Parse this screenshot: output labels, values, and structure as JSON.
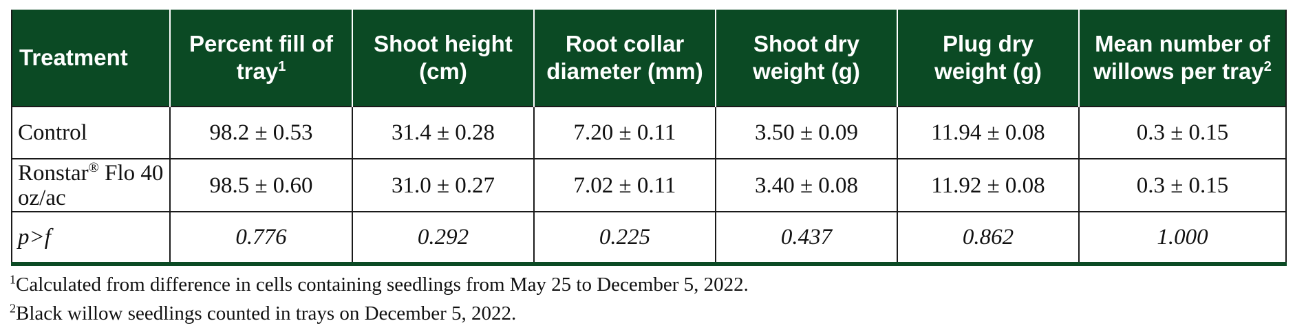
{
  "table": {
    "header": [
      {
        "text": "Treatment"
      },
      {
        "text": "Percent fill of tray",
        "sup": "1"
      },
      {
        "text": "Shoot height (cm)"
      },
      {
        "text": "Root collar diameter (mm)"
      },
      {
        "text": "Shoot dry weight (g)"
      },
      {
        "text": "Plug dry weight (g)"
      },
      {
        "text": "Mean number of willows per tray",
        "sup": "2"
      }
    ],
    "rows": [
      {
        "label": "Control",
        "cells": [
          "98.2 ± 0.53",
          "31.4 ± 0.28",
          "7.20 ± 0.11",
          "3.50 ± 0.09",
          "11.94 ± 0.08",
          "0.3 ± 0.15"
        ]
      },
      {
        "label": "Ronstar",
        "label_sup": "®",
        "label_rest": "Flo 40 oz/ac",
        "cells": [
          "98.5 ± 0.60",
          "31.0 ± 0.27",
          "7.02 ± 0.11",
          "3.40 ± 0.08",
          "11.92 ± 0.08",
          "0.3 ± 0.15"
        ]
      },
      {
        "label": "p>f",
        "cells": [
          "0.776",
          "0.292",
          "0.225",
          "0.437",
          "0.862",
          "1.000"
        ]
      }
    ],
    "footnotes": [
      {
        "mark": "1",
        "text": "Calculated from difference in cells containing seedlings from May 25 to December 5, 2022."
      },
      {
        "mark": "2",
        "text": "Black willow seedlings counted in trays on December 5, 2022."
      }
    ]
  }
}
